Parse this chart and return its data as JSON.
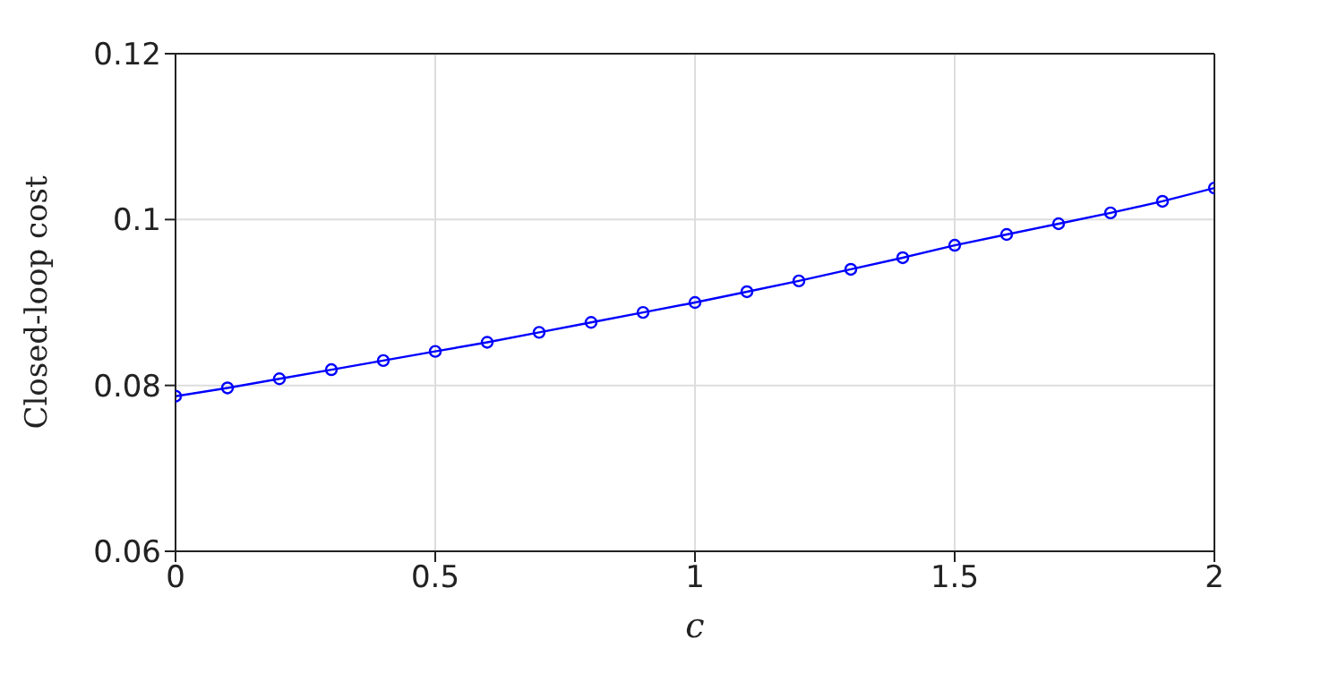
{
  "chart_data": {
    "type": "line",
    "xlabel": "c",
    "ylabel": "Closed-loop cost",
    "x": [
      0,
      0.1,
      0.2,
      0.3,
      0.4,
      0.5,
      0.6,
      0.7,
      0.8,
      0.9,
      1,
      1.1,
      1.2,
      1.3,
      1.4,
      1.5,
      1.6,
      1.7,
      1.8,
      1.9,
      2
    ],
    "series": [
      {
        "color": "#0000ff",
        "values": [
          0.0787,
          0.0797,
          0.0808,
          0.0819,
          0.083,
          0.0841,
          0.0852,
          0.0864,
          0.0876,
          0.0888,
          0.09,
          0.0913,
          0.0926,
          0.094,
          0.0954,
          0.0969,
          0.0982,
          0.0995,
          0.1008,
          0.1022,
          0.1038
        ]
      }
    ],
    "xlim": [
      0,
      2
    ],
    "xticks": [
      0,
      0.5,
      1,
      1.5,
      2
    ],
    "ylim": [
      0.06,
      0.12
    ],
    "yticks": [
      0.06,
      0.08,
      0.1,
      0.12
    ],
    "grid": true,
    "marker": "circle",
    "line_style": "solid"
  }
}
